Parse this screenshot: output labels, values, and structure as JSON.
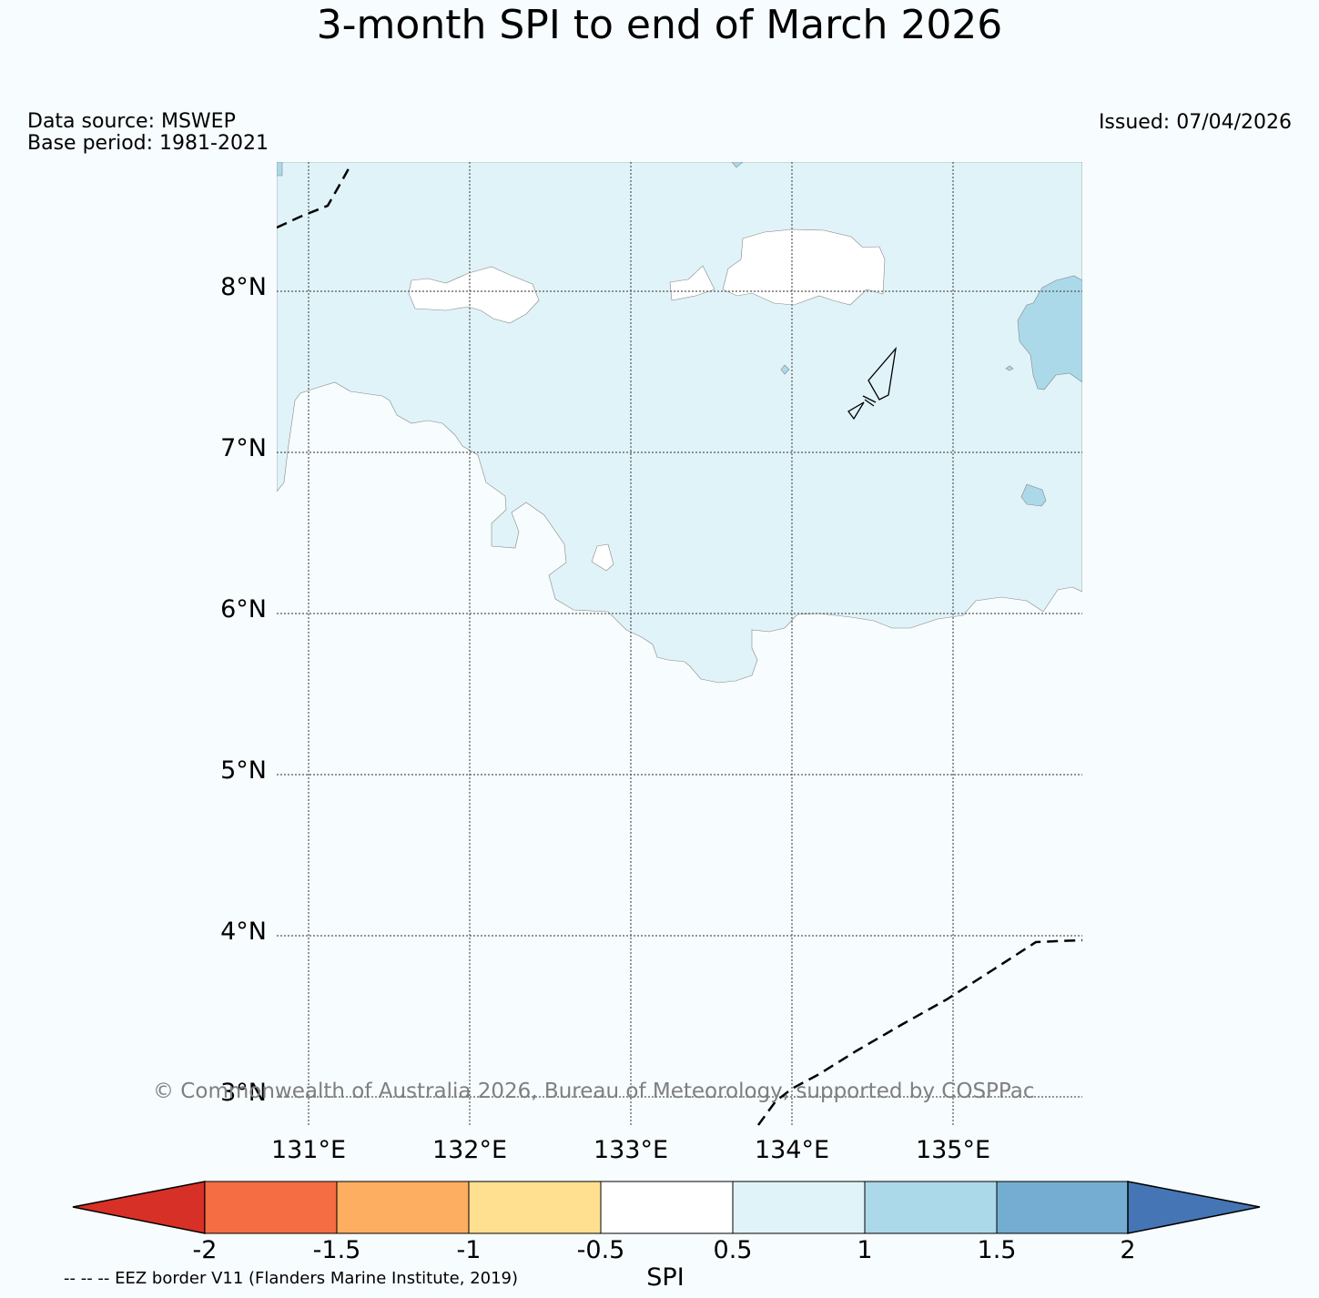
{
  "title": "3-month SPI to end of March 2026",
  "data_source": "Data source: MSWEP",
  "base_period": "Base period: 1981-2021",
  "issued": "Issued: 07/04/2026",
  "copyright": "© Commonwealth of Australia 2026, Bureau of Meteorology, supported by COSPPac",
  "eez_note": "-- -- -- EEZ border V11 (Flanders Marine Institute, 2019)",
  "map": {
    "lat_labels": [
      "8°N",
      "7°N",
      "6°N",
      "5°N",
      "4°N",
      "3°N"
    ],
    "lon_labels": [
      "131°E",
      "132°E",
      "133°E",
      "134°E",
      "135°E"
    ]
  },
  "colorbar": {
    "label": "SPI",
    "ticks": [
      "-2",
      "-1.5",
      "-1",
      "-0.5",
      "0.5",
      "1",
      "1.5",
      "2"
    ],
    "colors": [
      "#d73027",
      "#f46d43",
      "#fdae61",
      "#fee090",
      "#ffffff",
      "#e0f3f8",
      "#abd9e9",
      "#74add1",
      "#4575b4"
    ]
  }
}
